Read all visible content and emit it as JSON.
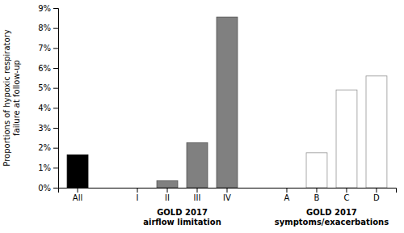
{
  "chart_data": {
    "type": "bar",
    "categories": [
      "All",
      "I",
      "II",
      "III",
      "IV",
      "A",
      "B",
      "C",
      "D"
    ],
    "values": [
      1.65,
      0.0,
      0.35,
      2.25,
      8.55,
      0.0,
      1.75,
      4.9,
      5.6
    ],
    "colors": [
      "#000000",
      "#808080",
      "#808080",
      "#808080",
      "#808080",
      "#ffffff",
      "#ffffff",
      "#ffffff",
      "#ffffff"
    ],
    "ylabel": "Proportions of hypoxic respiratory\nfailure at follow-up",
    "ylim": [
      0,
      9
    ],
    "yticks": [
      {
        "value": 0,
        "label": "0%"
      },
      {
        "value": 1,
        "label": "1%"
      },
      {
        "value": 2,
        "label": "2%"
      },
      {
        "value": 3,
        "label": "3%"
      },
      {
        "value": 4,
        "label": "4%"
      },
      {
        "value": 5,
        "label": "5%"
      },
      {
        "value": 6,
        "label": "6%"
      },
      {
        "value": 7,
        "label": "7%"
      },
      {
        "value": 8,
        "label": "8%"
      },
      {
        "value": 9,
        "label": "9%"
      }
    ],
    "grid": false,
    "annotations": [
      {
        "text": "GOLD 2017\nairflow limitation",
        "categories": [
          "I",
          "II",
          "III",
          "IV"
        ]
      },
      {
        "text": "GOLD 2017\nsymptoms/exacerbations",
        "categories": [
          "A",
          "B",
          "C",
          "D"
        ]
      }
    ]
  }
}
